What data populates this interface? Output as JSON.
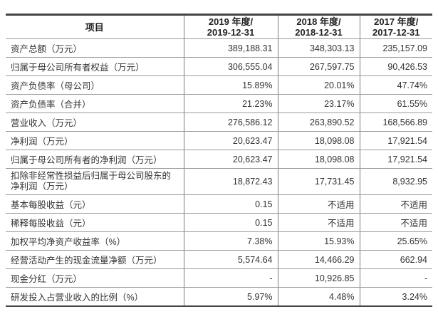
{
  "table": {
    "headers": [
      {
        "line1": "项目",
        "line2": ""
      },
      {
        "line1": "2019 年度/",
        "line2": "2019-12-31"
      },
      {
        "line1": "2018 年度/",
        "line2": "2018-12-31"
      },
      {
        "line1": "2017 年度/",
        "line2": "2017-12-31"
      }
    ],
    "rows": [
      {
        "label": "资产总额（万元）",
        "values": [
          "389,188.31",
          "348,303.13",
          "235,157.09"
        ]
      },
      {
        "label": "归属于母公司所有者权益（万元）",
        "values": [
          "306,555.04",
          "267,597.75",
          "90,426.53"
        ]
      },
      {
        "label": "资产负债率（母公司）",
        "values": [
          "15.89%",
          "20.01%",
          "47.74%"
        ]
      },
      {
        "label": "资产负债率（合并）",
        "values": [
          "21.23%",
          "23.17%",
          "61.55%"
        ]
      },
      {
        "label": "营业收入（万元）",
        "values": [
          "276,586.12",
          "263,890.52",
          "168,566.89"
        ]
      },
      {
        "label": "净利润（万元）",
        "values": [
          "20,623.47",
          "18,098.08",
          "17,921.54"
        ]
      },
      {
        "label": "归属于母公司所有者的净利润（万元）",
        "values": [
          "20,623.47",
          "18,098.08",
          "17,921.54"
        ]
      },
      {
        "label": "扣除非经常性损益后归属于母公司股东的净利润（万元）",
        "values": [
          "18,872.43",
          "17,731.45",
          "8,932.95"
        ],
        "multiline": true
      },
      {
        "label": "基本每股收益（元）",
        "values": [
          "0.15",
          "不适用",
          "不适用"
        ]
      },
      {
        "label": "稀释每股收益（元）",
        "values": [
          "0.15",
          "不适用",
          "不适用"
        ]
      },
      {
        "label": "加权平均净资产收益率（%）",
        "values": [
          "7.38%",
          "15.93%",
          "25.65%"
        ]
      },
      {
        "label": "经营活动产生的现金流量净额（万元）",
        "values": [
          "5,574.64",
          "14,466.29",
          "662.94"
        ]
      },
      {
        "label": "现金分红（万元）",
        "values": [
          "-",
          "10,926.85",
          "-"
        ]
      },
      {
        "label": "研发投入占营业收入的比例（%）",
        "values": [
          "5.97%",
          "4.48%",
          "3.24%"
        ]
      }
    ]
  }
}
